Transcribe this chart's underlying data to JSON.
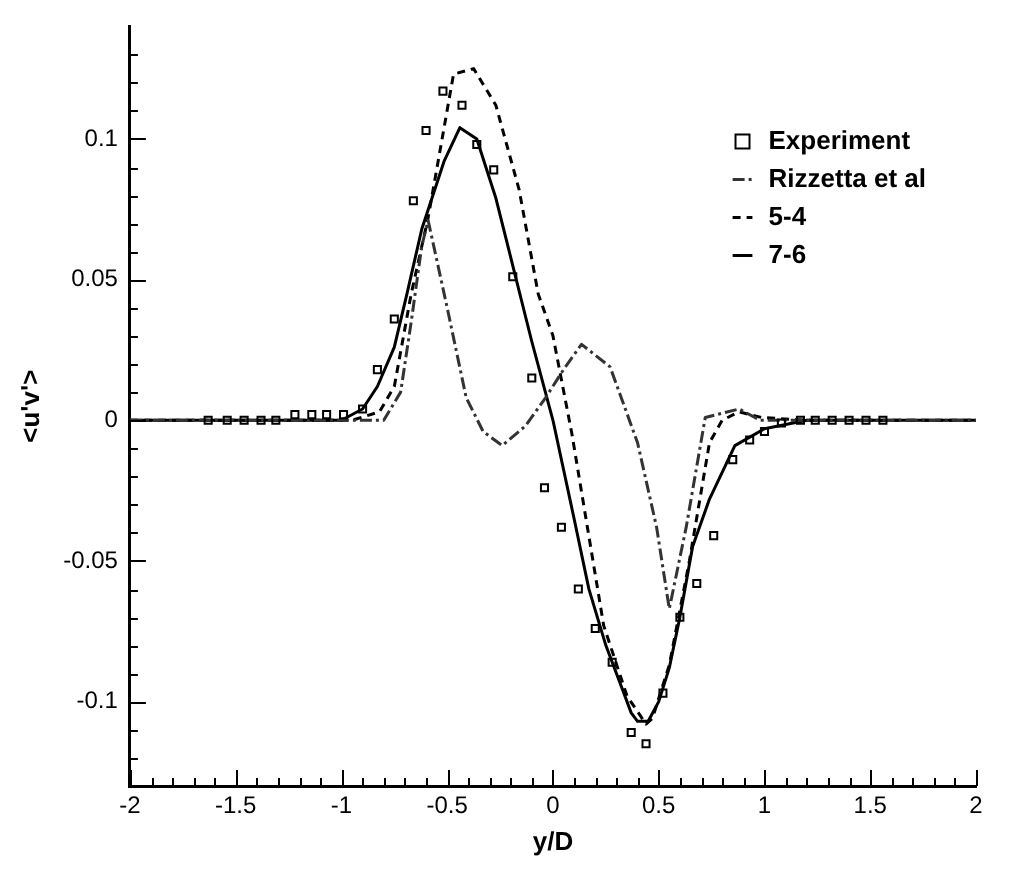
{
  "chart_data": {
    "type": "line",
    "xlabel": "y/D",
    "ylabel": "<u'v'>",
    "xlim": [
      -2,
      2
    ],
    "ylim": [
      -0.13,
      0.14
    ],
    "xticks": [
      -2,
      {
        "value": -1.9,
        "label": null
      },
      {
        "value": -1.8,
        "label": null
      },
      {
        "value": -1.7,
        "label": null
      },
      {
        "value": -1.6,
        "label": null
      },
      -1.5,
      {
        "value": -1.4,
        "label": null
      },
      {
        "value": -1.3,
        "label": null
      },
      {
        "value": -1.2,
        "label": null
      },
      {
        "value": -1.1,
        "label": null
      },
      -1,
      {
        "value": -0.9,
        "label": null
      },
      {
        "value": -0.8,
        "label": null
      },
      {
        "value": -0.7,
        "label": null
      },
      {
        "value": -0.6,
        "label": null
      },
      -0.5,
      {
        "value": -0.4,
        "label": null
      },
      {
        "value": -0.3,
        "label": null
      },
      {
        "value": -0.2,
        "label": null
      },
      {
        "value": -0.1,
        "label": null
      },
      0,
      {
        "value": 0.1,
        "label": null
      },
      {
        "value": 0.2,
        "label": null
      },
      {
        "value": 0.3,
        "label": null
      },
      {
        "value": 0.4,
        "label": null
      },
      0.5,
      {
        "value": 0.6,
        "label": null
      },
      {
        "value": 0.7,
        "label": null
      },
      {
        "value": 0.8,
        "label": null
      },
      {
        "value": 0.9,
        "label": null
      },
      1,
      {
        "value": 1.1,
        "label": null
      },
      {
        "value": 1.2,
        "label": null
      },
      {
        "value": 1.3,
        "label": null
      },
      {
        "value": 1.4,
        "label": null
      },
      1.5,
      {
        "value": 1.6,
        "label": null
      },
      {
        "value": 1.7,
        "label": null
      },
      {
        "value": 1.8,
        "label": null
      },
      {
        "value": 1.9,
        "label": null
      },
      2
    ],
    "yticks": [
      {
        "value": -0.12,
        "label": null
      },
      {
        "value": -0.11,
        "label": null
      },
      -0.1,
      {
        "value": -0.09,
        "label": null
      },
      {
        "value": -0.08,
        "label": null
      },
      {
        "value": -0.07,
        "label": null
      },
      {
        "value": -0.06,
        "label": null
      },
      -0.05,
      {
        "value": -0.04,
        "label": null
      },
      {
        "value": -0.03,
        "label": null
      },
      {
        "value": -0.02,
        "label": null
      },
      {
        "value": -0.01,
        "label": null
      },
      0,
      {
        "value": 0.01,
        "label": null
      },
      {
        "value": 0.02,
        "label": null
      },
      {
        "value": 0.03,
        "label": null
      },
      {
        "value": 0.04,
        "label": null
      },
      0.05,
      {
        "value": 0.06,
        "label": null
      },
      {
        "value": 0.07,
        "label": null
      },
      {
        "value": 0.08,
        "label": null
      },
      {
        "value": 0.09,
        "label": null
      },
      0.1,
      {
        "value": 0.11,
        "label": null
      },
      {
        "value": 0.12,
        "label": null
      },
      {
        "value": 0.13,
        "label": null
      }
    ],
    "legend": "top right",
    "grid": false,
    "series": [
      {
        "name": "Experiment",
        "type": "scatter",
        "marker": "square",
        "color": "#000000",
        "x": [
          -1.63,
          -1.54,
          -1.46,
          -1.38,
          -1.31,
          -1.22,
          -1.14,
          -1.07,
          -0.99,
          -0.9,
          -0.83,
          -0.75,
          -0.66,
          -0.6,
          -0.52,
          -0.43,
          -0.36,
          -0.28,
          -0.19,
          -0.1,
          -0.04,
          0.04,
          0.12,
          0.2,
          0.28,
          0.37,
          0.44,
          0.52,
          0.6,
          0.68,
          0.76,
          0.85,
          0.93,
          1.0,
          1.08,
          1.17,
          1.24,
          1.32,
          1.4,
          1.48,
          1.56
        ],
        "values": [
          0,
          0,
          0,
          0,
          0,
          0.002,
          0.002,
          0.002,
          0.002,
          0.004,
          0.018,
          0.036,
          0.078,
          0.103,
          0.117,
          0.112,
          0.098,
          0.089,
          0.051,
          0.015,
          -0.024,
          -0.038,
          -0.06,
          -0.074,
          -0.086,
          -0.111,
          -0.115,
          -0.097,
          -0.07,
          -0.058,
          -0.041,
          -0.014,
          -0.007,
          -0.004,
          -0.001,
          0,
          0,
          0,
          0,
          0,
          0
        ]
      },
      {
        "name": "Rizzetta et al",
        "type": "line",
        "line_style": "dashdot",
        "marker": "none",
        "color": "#333333",
        "x": [
          -2,
          -0.8,
          -0.72,
          -0.67,
          -0.62,
          -0.59,
          -0.5,
          -0.41,
          -0.33,
          -0.24,
          -0.13,
          -0.035,
          0.05,
          0.135,
          0.27,
          0.4,
          0.49,
          0.55,
          0.63,
          0.72,
          0.88,
          0.98,
          2
        ],
        "values": [
          0,
          0,
          0.01,
          0.035,
          0.062,
          0.071,
          0.04,
          0.008,
          -0.004,
          -0.009,
          -0.002,
          0.008,
          0.018,
          0.027,
          0.019,
          -0.008,
          -0.038,
          -0.067,
          -0.038,
          0.001,
          0.004,
          0,
          0
        ]
      },
      {
        "name": "5-4",
        "type": "line",
        "line_style": "dashed",
        "marker": "none",
        "color": "#000000",
        "x": [
          -2,
          -0.95,
          -0.82,
          -0.75,
          -0.67,
          -0.59,
          -0.47,
          -0.375,
          -0.27,
          -0.16,
          -0.07,
          0,
          0.09,
          0.24,
          0.35,
          0.44,
          0.47,
          0.55,
          0.645,
          0.74,
          0.8,
          0.88,
          0.985,
          1.2,
          2
        ],
        "values": [
          0,
          0,
          0.003,
          0.012,
          0.045,
          0.072,
          0.123,
          0.125,
          0.112,
          0.082,
          0.045,
          0.03,
          -0.005,
          -0.073,
          -0.098,
          -0.108,
          -0.106,
          -0.087,
          -0.05,
          -0.008,
          0,
          0.003,
          0.001,
          0,
          0
        ]
      },
      {
        "name": "7-6",
        "type": "line",
        "line_style": "solid",
        "marker": "none",
        "color": "#000000",
        "x": [
          -2,
          -1.0,
          -0.9,
          -0.83,
          -0.75,
          -0.69,
          -0.62,
          -0.515,
          -0.44,
          -0.36,
          -0.27,
          -0.19,
          -0.1,
          0,
          0.1,
          0.17,
          0.25,
          0.33,
          0.37,
          0.4,
          0.45,
          0.5,
          0.55,
          0.6,
          0.66,
          0.74,
          0.86,
          1.0,
          1.2,
          2
        ],
        "values": [
          0,
          0,
          0.004,
          0.012,
          0.026,
          0.045,
          0.068,
          0.092,
          0.104,
          0.1,
          0.079,
          0.055,
          0.028,
          0,
          -0.035,
          -0.06,
          -0.08,
          -0.096,
          -0.104,
          -0.107,
          -0.107,
          -0.1,
          -0.088,
          -0.07,
          -0.045,
          -0.028,
          -0.009,
          -0.003,
          0,
          0
        ]
      }
    ]
  }
}
